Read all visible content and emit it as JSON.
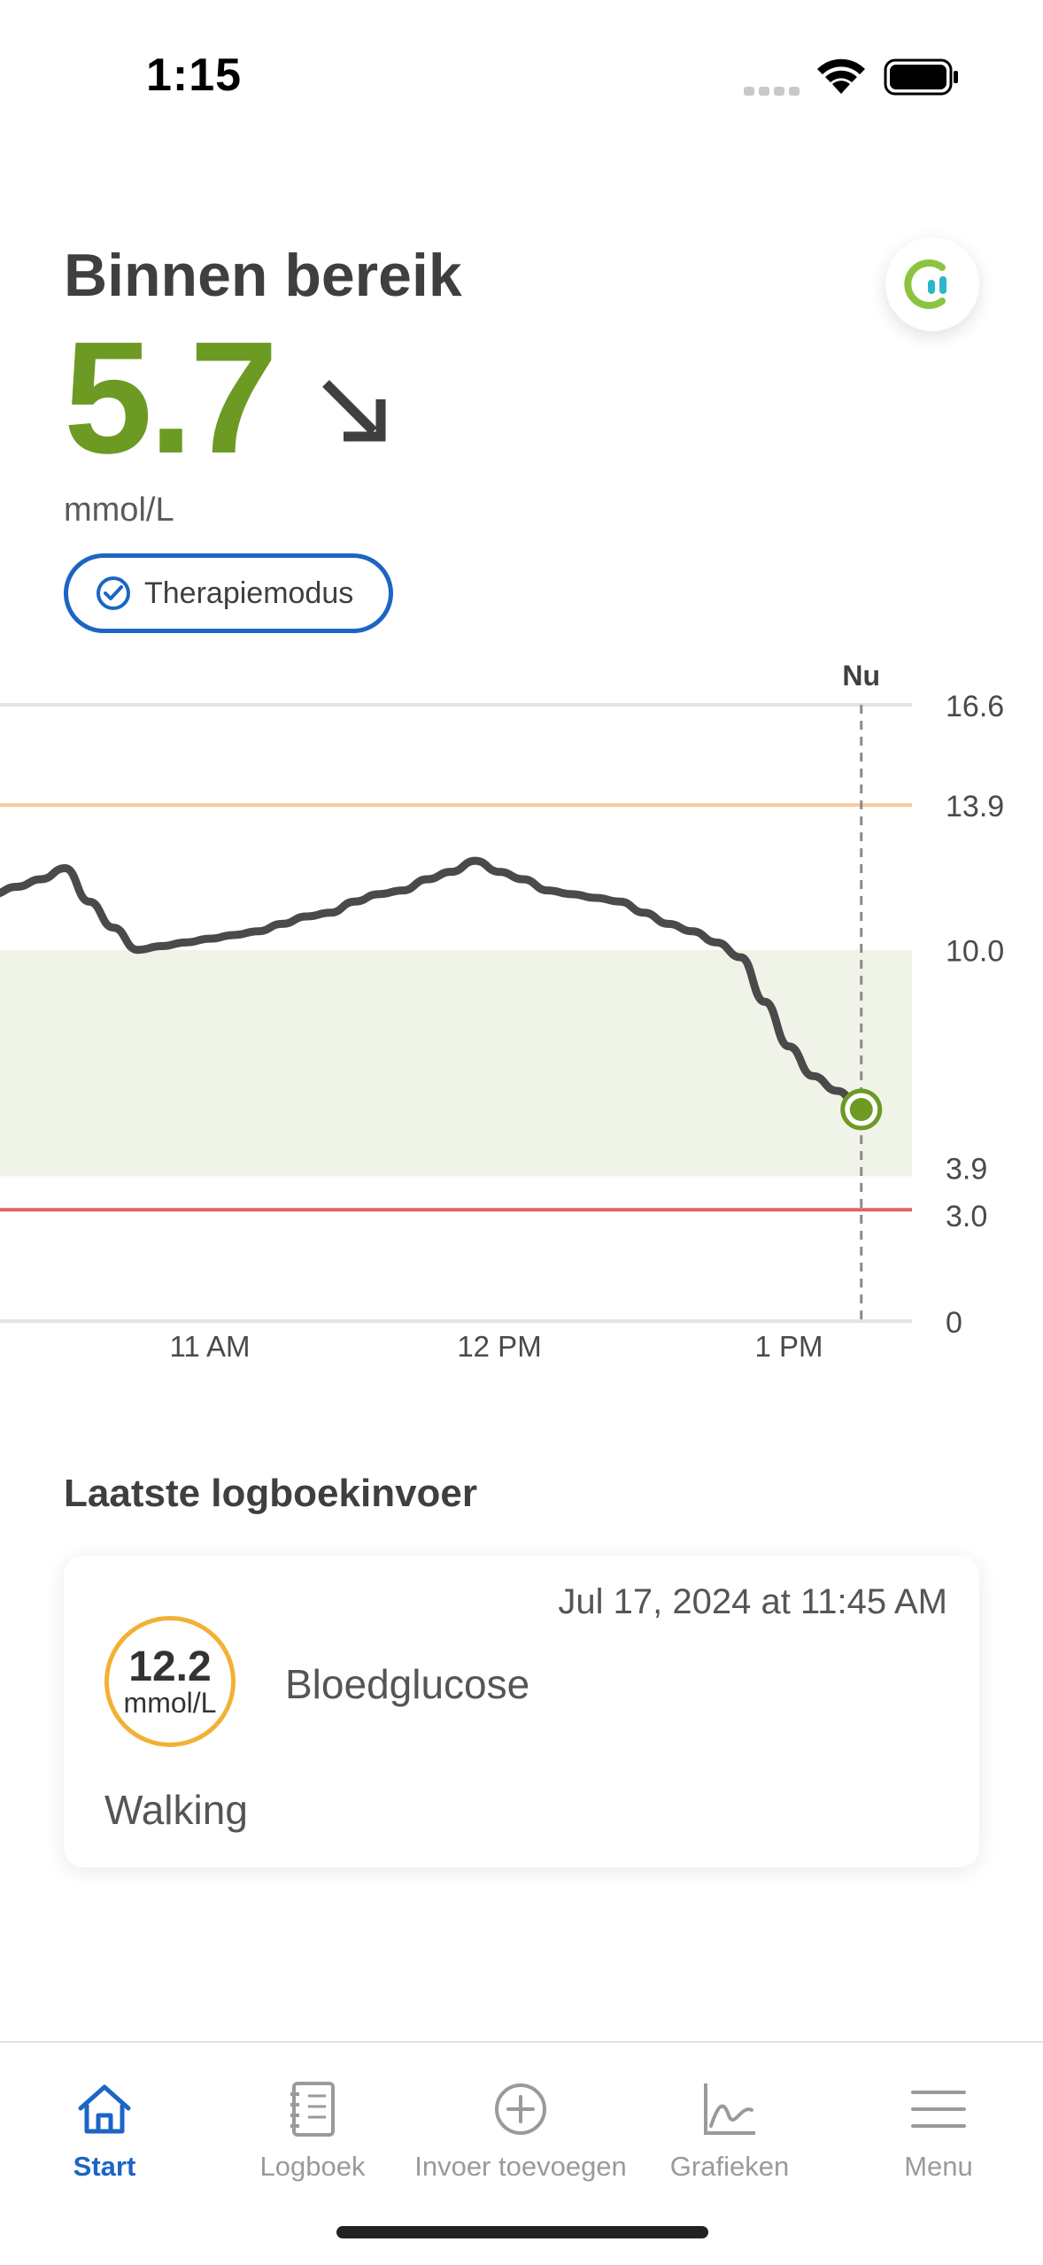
{
  "status_bar": {
    "time": "1:15"
  },
  "header": {
    "status_label": "Binnen bereik",
    "value": "5.7",
    "unit": "mmol/L",
    "trend_icon": "arrow-down-right-icon",
    "therapy_mode_label": "Therapiemodus",
    "colors": {
      "value": "#6c9a23",
      "accent": "#1c65c4"
    }
  },
  "chart_data": {
    "type": "line",
    "now_label": "Nu",
    "x_ticks": [
      "11 AM",
      "12 PM",
      "1 PM"
    ],
    "y_ticks": [
      "16.6",
      "13.9",
      "10.0",
      "3.9",
      "3.0",
      "0"
    ],
    "ylim": [
      0,
      16.6
    ],
    "target_range": [
      3.9,
      10.0
    ],
    "high_threshold": 13.9,
    "low_threshold": 3.0,
    "series": [
      {
        "x": [
          "10:15",
          "10:20",
          "10:25",
          "10:30",
          "10:35",
          "10:40",
          "10:45",
          "10:50",
          "10:55",
          "11:00",
          "11:05",
          "11:10",
          "11:15",
          "11:20",
          "11:25",
          "11:30",
          "11:35",
          "11:40",
          "11:45",
          "11:50",
          "11:55",
          "12:00",
          "12:05",
          "12:10",
          "12:15",
          "12:20",
          "12:25",
          "12:30",
          "12:35",
          "12:40",
          "12:45",
          "12:50",
          "12:55",
          "13:00",
          "13:05",
          "13:10",
          "13:15"
        ],
        "values": [
          11.5,
          11.7,
          11.9,
          12.2,
          11.3,
          10.6,
          10.0,
          10.1,
          10.2,
          10.3,
          10.4,
          10.5,
          10.7,
          10.9,
          11.0,
          11.3,
          11.5,
          11.6,
          11.9,
          12.1,
          12.4,
          12.1,
          11.9,
          11.6,
          11.5,
          11.4,
          11.3,
          11.0,
          10.7,
          10.5,
          10.2,
          9.8,
          8.6,
          7.4,
          6.6,
          6.2,
          5.7
        ]
      }
    ],
    "colors": {
      "line": "#4a4a4a",
      "target_band": "#f0f4e8",
      "high": "#f8c99a",
      "low": "#e06363",
      "current_point": "#6c9a23"
    }
  },
  "log": {
    "section_title": "Laatste logboekinvoer",
    "entry": {
      "date": "Jul 17, 2024 at 11:45 AM",
      "value": "12.2",
      "unit": "mmol/L",
      "type": "Bloedglucose",
      "note": "Walking",
      "ring_color": "#f2b134"
    }
  },
  "tabbar": {
    "tabs": [
      {
        "label": "Start",
        "icon": "home-icon",
        "active": true
      },
      {
        "label": "Logboek",
        "icon": "logbook-icon",
        "active": false
      },
      {
        "label": "Invoer toevoegen",
        "icon": "add-circle-icon",
        "active": false
      },
      {
        "label": "Grafieken",
        "icon": "chart-icon",
        "active": false
      },
      {
        "label": "Menu",
        "icon": "menu-icon",
        "active": false
      }
    ]
  }
}
